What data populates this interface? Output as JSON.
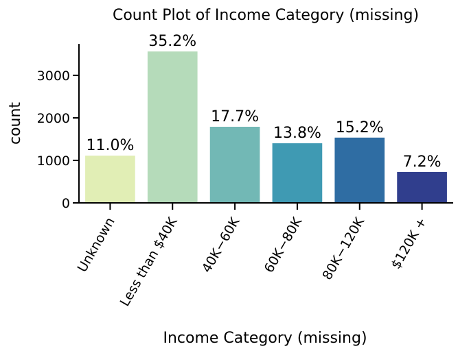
{
  "chart_data": {
    "type": "bar",
    "title": "Count Plot of Income Category (missing)",
    "xlabel": "Income Category (missing)",
    "ylabel": "count",
    "categories": [
      "Unknown",
      "Less than $40K",
      "$40K - $60K",
      "$60K - $80K",
      "$80K - $120K",
      "$120K +"
    ],
    "category_labels": [
      "Unknown",
      "Less than $40K",
      "40K−60K",
      "60K−80K",
      "80K−120K",
      "$120K +"
    ],
    "values": [
      1112,
      3561,
      1790,
      1402,
      1535,
      727
    ],
    "data_labels": [
      "11.0%",
      "35.2%",
      "17.7%",
      "13.8%",
      "15.2%",
      "7.2%"
    ],
    "colors": [
      "#e1eeb5",
      "#b5dbba",
      "#72b8b5",
      "#3f9ab3",
      "#2f6da3",
      "#303e8d"
    ],
    "ylim": [
      0,
      3740
    ],
    "yticks": [
      0,
      1000,
      2000,
      3000
    ],
    "grid": false,
    "legend": "none"
  }
}
